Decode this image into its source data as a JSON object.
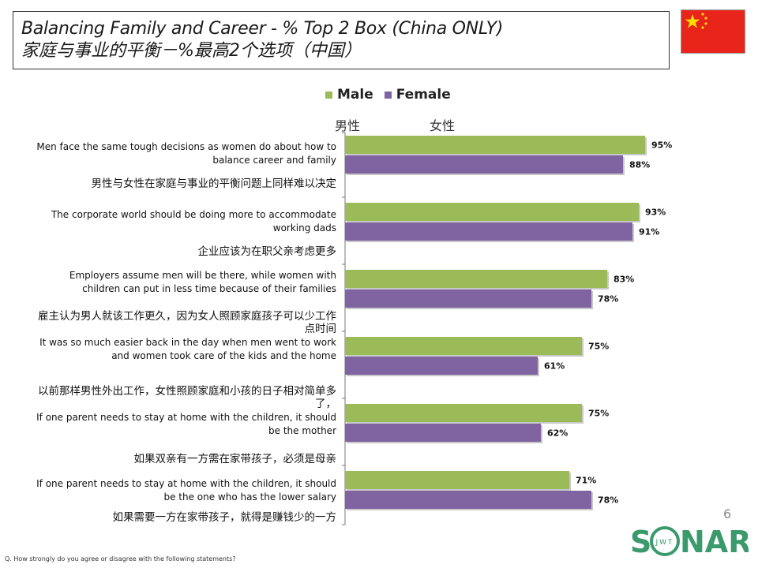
{
  "title": {
    "en": "Balancing Family and Career - % Top 2 Box (China ONLY)",
    "zh": "家庭与事业的平衡－%最高2个选项（中国）"
  },
  "column_labels": {
    "male": "男性",
    "female": "女性"
  },
  "page_number": "6",
  "logo": {
    "text_left": "S",
    "text_right": "NAR",
    "ring_text": "JWT"
  },
  "footnote": "Q. How strongly do you agree or disagree with the following statements?",
  "colors": {
    "male": "#9bbb59",
    "female": "#8064a2",
    "flag_red": "#e8241b",
    "flag_star": "#ffde00",
    "logo": "#3a9a6c"
  },
  "chart_data": {
    "type": "bar",
    "orientation": "horizontal",
    "xlim": [
      0,
      100
    ],
    "value_format": "percent",
    "categories": [
      {
        "en": "Men face the same tough decisions as women do about how to balance career and family",
        "zh": "男性与女性在家庭与事业的平衡问题上同样难以决定"
      },
      {
        "en": "The corporate world should be doing more to accommodate working dads",
        "zh": "企业应该为在职父亲考虑更多"
      },
      {
        "en": "Employers assume men will be there, while women with children can put in less time because of their families",
        "zh": "雇主认为男人就该工作更久，因为女人照顾家庭孩子可以少工作点时间"
      },
      {
        "en": "It was so much easier back in the day when men went to work and women took care of the kids and the home",
        "zh": "以前那样男性外出工作，女性照顾家庭和小孩的日子相对简单多了，"
      },
      {
        "en": "If one parent needs to stay at home with the children, it should be the mother",
        "zh": "如果双亲有一方需在家带孩子，必须是母亲"
      },
      {
        "en": "If one parent needs to stay at home with the children, it should be the one who has the lower salary",
        "zh": "如果需要一方在家带孩子，就得是赚钱少的一方"
      }
    ],
    "series": [
      {
        "name": "Male",
        "values": [
          95,
          93,
          83,
          75,
          75,
          71
        ]
      },
      {
        "name": "Female",
        "values": [
          88,
          91,
          78,
          61,
          62,
          78
        ]
      }
    ],
    "legend_position": "top",
    "grid": false
  }
}
